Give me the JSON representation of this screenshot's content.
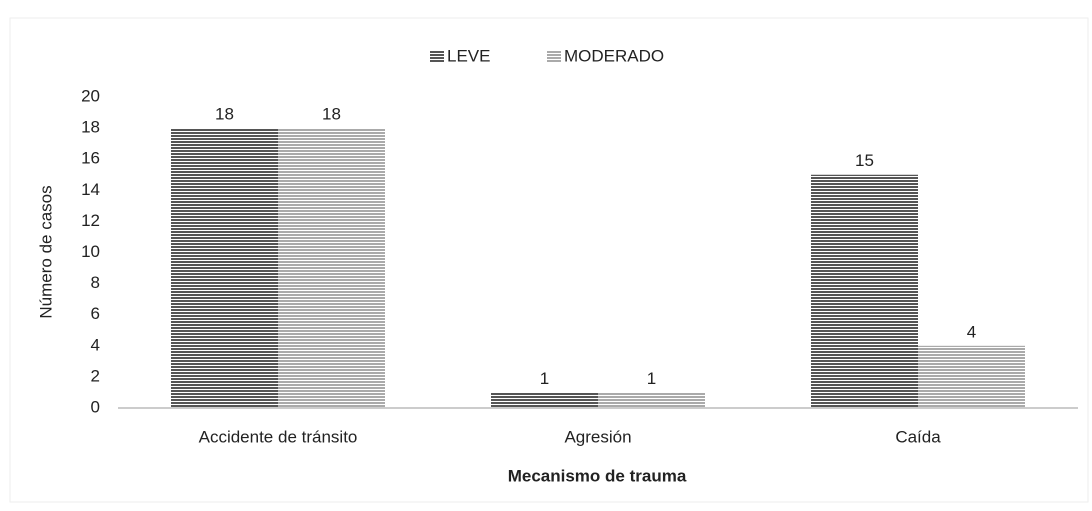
{
  "chart_data": {
    "type": "bar",
    "categories": [
      "Accidente de tránsito",
      "Agresión",
      "Caída"
    ],
    "series": [
      {
        "name": "LEVE",
        "color": "#555555",
        "values": [
          18,
          1,
          15
        ]
      },
      {
        "name": "MODERADO",
        "color": "#aaaaaa",
        "values": [
          18,
          1,
          4
        ]
      }
    ],
    "x_label": "Mecanismo de trauma",
    "y_label": "Número de casos",
    "ylim": [
      0,
      20
    ],
    "yticks": [
      0,
      2,
      4,
      6,
      8,
      10,
      12,
      14,
      16,
      18,
      20
    ],
    "grid": false,
    "legend": "top"
  }
}
